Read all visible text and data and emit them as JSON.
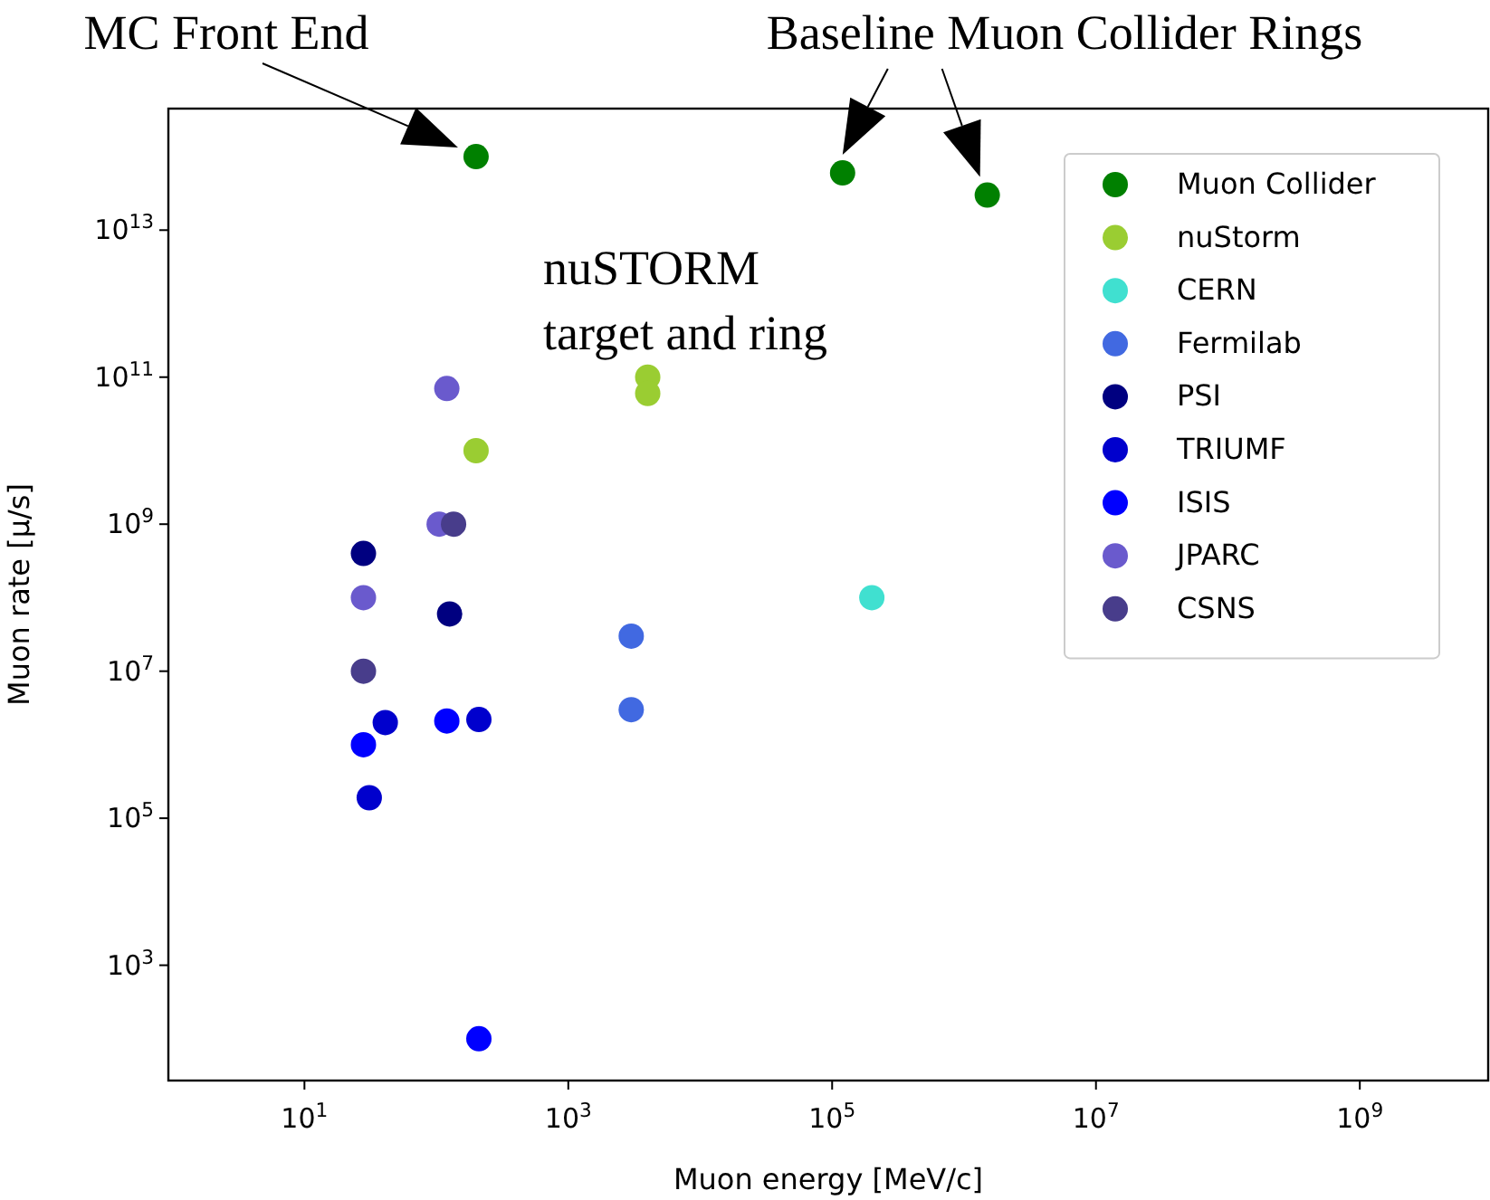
{
  "chart_data": {
    "type": "scatter",
    "xlabel": "Muon energy [MeV/c]",
    "ylabel": "Muon rate [μ/s]",
    "log": "xy",
    "xlim": [
      0.93,
      9400000000.0
    ],
    "ylim": [
      27,
      450000000000000.0
    ],
    "xticks": [
      {
        "value": 10,
        "label": "10$^{1}$"
      },
      {
        "value": 1000,
        "label": "10$^{3}$"
      },
      {
        "value": 100000,
        "label": "10$^{5}$"
      },
      {
        "value": 10000000,
        "label": "10$^{7}$"
      },
      {
        "value": 1000000000,
        "label": "10$^{9}$"
      }
    ],
    "yticks": [
      {
        "value": 1000,
        "label": "10$^{3}$"
      },
      {
        "value": 100000,
        "label": "10$^{5}$"
      },
      {
        "value": 10000000,
        "label": "10$^{7}$"
      },
      {
        "value": 1000000000,
        "label": "10$^{9}$"
      },
      {
        "value": 100000000000,
        "label": "10$^{11}$"
      },
      {
        "value": 10000000000000,
        "label": "10$^{13}$"
      }
    ],
    "grid": false,
    "legend": "top right",
    "marker": "circle",
    "series": [
      {
        "name": "Muon Collider",
        "color": "#008000",
        "x": [
          200,
          120000,
          1500000
        ],
        "values": [
          100000000000000.0,
          60000000000000.0,
          30000000000000.0
        ]
      },
      {
        "name": "nuStorm",
        "color": "#9acd32",
        "x": [
          4000,
          4000,
          200
        ],
        "values": [
          100000000000.0,
          60000000000.0,
          10000000000.0
        ]
      },
      {
        "name": "CERN",
        "color": "#40e0d0",
        "x": [
          200000
        ],
        "values": [
          100000000.0
        ]
      },
      {
        "name": "Fermilab",
        "color": "#4169e1",
        "x": [
          3000,
          3000
        ],
        "values": [
          30000000.0,
          3000000.0
        ]
      },
      {
        "name": "PSI",
        "color": "#000080",
        "x": [
          28,
          126
        ],
        "values": [
          400000000.0,
          60000000.0
        ]
      },
      {
        "name": "TRIUMF",
        "color": "#0000cd",
        "x": [
          41,
          31,
          210
        ],
        "values": [
          2000000.0,
          190000.0,
          2200000.0
        ]
      },
      {
        "name": "ISIS",
        "color": "#0000ff",
        "x": [
          28,
          120,
          210
        ],
        "values": [
          1000000.0,
          2100000.0,
          100
        ]
      },
      {
        "name": "JPARC",
        "color": "#6a5acd",
        "x": [
          120,
          28,
          105
        ],
        "values": [
          70000000000.0,
          100000000.0,
          1000000000.0
        ]
      },
      {
        "name": "CSNS",
        "color": "#483d8b",
        "x": [
          135,
          28
        ],
        "values": [
          1000000000.0,
          10000000.0
        ]
      }
    ],
    "annotations": [
      {
        "text": "MC Front End",
        "x": 200,
        "y": 100000000000000.0
      },
      {
        "text": "Baseline Muon Collider Rings",
        "x": 120000,
        "y": 60000000000000.0
      },
      "nuSTORM target and ring"
    ]
  }
}
